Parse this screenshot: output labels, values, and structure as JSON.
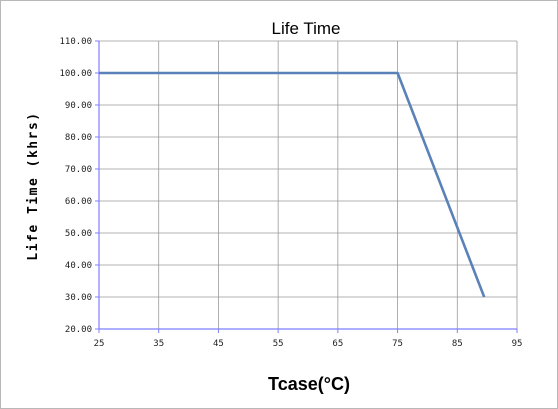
{
  "chart_data": {
    "type": "line",
    "title": "Life Time",
    "xlabel": "Tcase(°C)",
    "ylabel": "Life Time (khrs)",
    "xlim": [
      25,
      95
    ],
    "ylim": [
      20,
      110
    ],
    "x_ticks": [
      "25",
      "35",
      "45",
      "55",
      "65",
      "75",
      "85",
      "95"
    ],
    "y_ticks": [
      "110.00",
      "100.00",
      "90.00",
      "80.00",
      "70.00",
      "60.00",
      "50.00",
      "40.00",
      "30.00",
      "20.00"
    ],
    "grid": true,
    "series": [
      {
        "x": [
          25,
          75,
          89.5
        ],
        "y": [
          100,
          100,
          30
        ],
        "color": "#5b82b8"
      }
    ],
    "colors": {
      "grid": "#9a9a9a",
      "x_axis": "#7f7fff",
      "y_axis": "#7f7fff"
    }
  }
}
